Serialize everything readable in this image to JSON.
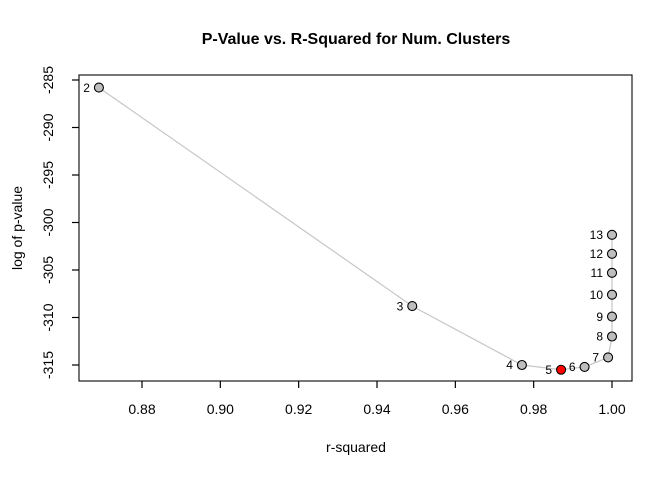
{
  "chart_data": {
    "type": "scatter",
    "title": "P-Value vs. R-Squared for Num. Clusters",
    "xlabel": "r-squared",
    "ylabel": "log of p-value",
    "xlim": [
      0.864,
      1.005
    ],
    "ylim": [
      -316.7,
      -284.6
    ],
    "grid": false,
    "legend_position": "none",
    "x_ticks": [
      {
        "v": 0.88,
        "label": "0.88"
      },
      {
        "v": 0.9,
        "label": "0.90"
      },
      {
        "v": 0.92,
        "label": "0.92"
      },
      {
        "v": 0.94,
        "label": "0.94"
      },
      {
        "v": 0.96,
        "label": "0.96"
      },
      {
        "v": 0.98,
        "label": "0.98"
      },
      {
        "v": 1.0,
        "label": "1.00"
      }
    ],
    "y_ticks": [
      {
        "v": -285,
        "label": "-285"
      },
      {
        "v": -290,
        "label": "-290"
      },
      {
        "v": -295,
        "label": "-295"
      },
      {
        "v": -300,
        "label": "-300"
      },
      {
        "v": -305,
        "label": "-305"
      },
      {
        "v": -310,
        "label": "-310"
      },
      {
        "v": -315,
        "label": "-315"
      }
    ],
    "points": [
      {
        "label": "2",
        "x": 0.869,
        "y": -285.8,
        "highlight": false
      },
      {
        "label": "3",
        "x": 0.949,
        "y": -308.8,
        "highlight": false
      },
      {
        "label": "4",
        "x": 0.977,
        "y": -315.0,
        "highlight": false
      },
      {
        "label": "5",
        "x": 0.987,
        "y": -315.5,
        "highlight": true
      },
      {
        "label": "6",
        "x": 0.993,
        "y": -315.2,
        "highlight": false
      },
      {
        "label": "7",
        "x": 0.999,
        "y": -314.2,
        "highlight": false
      },
      {
        "label": "8",
        "x": 1.0,
        "y": -312.0,
        "highlight": false
      },
      {
        "label": "9",
        "x": 1.0,
        "y": -309.9,
        "highlight": false
      },
      {
        "label": "10",
        "x": 1.0,
        "y": -307.6,
        "highlight": false
      },
      {
        "label": "11",
        "x": 1.0,
        "y": -305.3,
        "highlight": false
      },
      {
        "label": "12",
        "x": 1.0,
        "y": -303.3,
        "highlight": false
      },
      {
        "label": "13",
        "x": 1.0,
        "y": -301.3,
        "highlight": false
      }
    ],
    "colors": {
      "point_fill": "#bebebe",
      "point_border": "#000000",
      "highlight_fill": "#ff0000",
      "highlight_label": "#ff0000",
      "line": "#c6c6c6",
      "text": "#000000"
    }
  }
}
